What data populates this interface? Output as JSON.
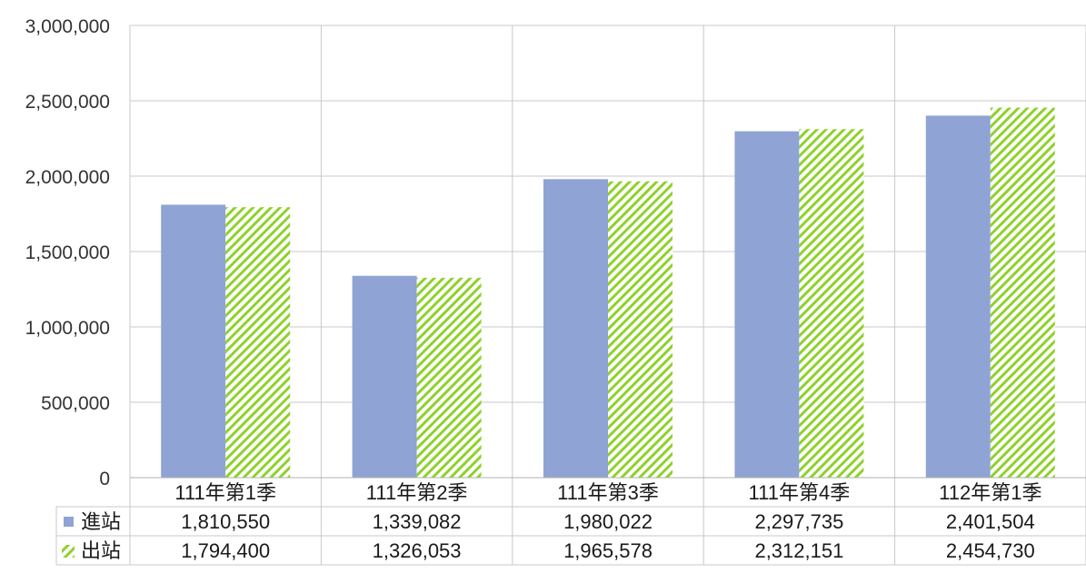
{
  "chart_data": {
    "type": "bar",
    "categories": [
      "111年第1季",
      "111年第2季",
      "111年第3季",
      "111年第4季",
      "112年第1季"
    ],
    "series": [
      {
        "name": "進站",
        "values": [
          1810550,
          1339082,
          1980022,
          2297735,
          2401504
        ],
        "value_labels": [
          "1,810,550",
          "1,339,082",
          "1,980,022",
          "2,297,735",
          "2,401,504"
        ],
        "color": "#8fa3d4",
        "fill": "solid"
      },
      {
        "name": "出站",
        "values": [
          1794400,
          1326053,
          1965578,
          2312151,
          2454730
        ],
        "value_labels": [
          "1,794,400",
          "1,326,053",
          "1,965,578",
          "2,312,151",
          "2,454,730"
        ],
        "color": "#8fd12c",
        "fill": "diagonal-hatch"
      }
    ],
    "yticks": [
      {
        "value": 0,
        "label": "0"
      },
      {
        "value": 500000,
        "label": "500,000"
      },
      {
        "value": 1000000,
        "label": "1,000,000"
      },
      {
        "value": 1500000,
        "label": "1,500,000"
      },
      {
        "value": 2000000,
        "label": "2,000,000"
      },
      {
        "value": 2500000,
        "label": "2,500,000"
      },
      {
        "value": 3000000,
        "label": "3,000,000"
      }
    ],
    "ylim": [
      0,
      3000000
    ],
    "title": "",
    "xlabel": "",
    "ylabel": "",
    "grid": true,
    "legend": "data-table-below"
  }
}
